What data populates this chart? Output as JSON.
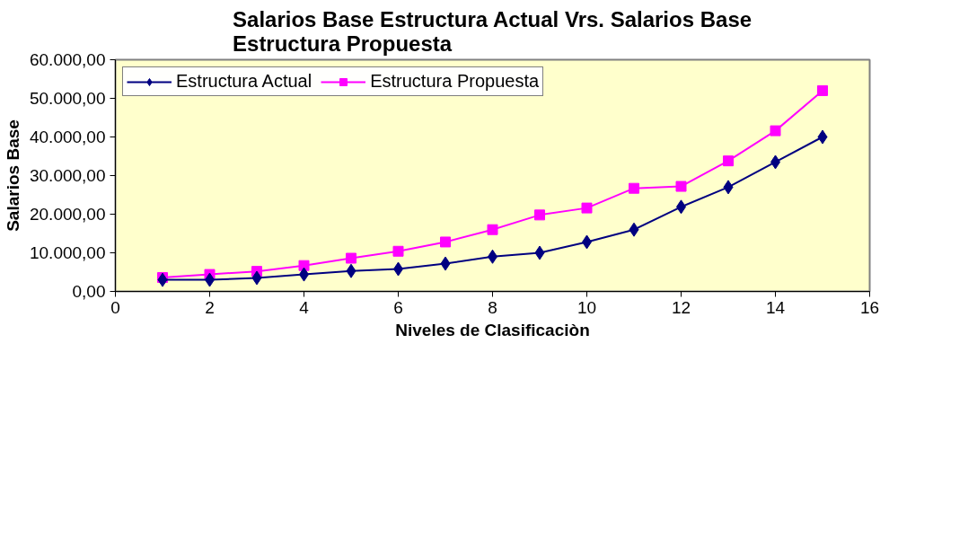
{
  "chart_data": {
    "type": "line",
    "title": "Salarios Base Estructura Actual Vrs. Salarios Base\nEstructura Propuesta",
    "xlabel": "Niveles de Clasificaciòn",
    "ylabel": "Salarios Base",
    "x": [
      1,
      2,
      3,
      4,
      5,
      6,
      7,
      8,
      9,
      10,
      11,
      12,
      13,
      14,
      15
    ],
    "series": [
      {
        "name": "Estructura Actual",
        "color": "#000080",
        "marker": "diamond",
        "values": [
          3000,
          3000,
          3500,
          4400,
          5300,
          5800,
          7200,
          9000,
          10000,
          12800,
          16000,
          21900,
          27000,
          33500,
          40000
        ]
      },
      {
        "name": "Estructura Propuesta",
        "color": "#ff00ff",
        "marker": "square",
        "values": [
          3600,
          4400,
          5200,
          6700,
          8600,
          10400,
          12800,
          16000,
          19800,
          21600,
          26700,
          27200,
          33800,
          41600,
          52000
        ]
      }
    ],
    "xlim": [
      0,
      16
    ],
    "xticks": [
      0,
      2,
      4,
      6,
      8,
      10,
      12,
      14,
      16
    ],
    "ylim": [
      0,
      60000
    ],
    "yticks": [
      {
        "value": 0,
        "label": "0,00"
      },
      {
        "value": 10000,
        "label": "10.000,00"
      },
      {
        "value": 20000,
        "label": "20.000,00"
      },
      {
        "value": 30000,
        "label": "30.000,00"
      },
      {
        "value": 40000,
        "label": "40.000,00"
      },
      {
        "value": 50000,
        "label": "50.000,00"
      },
      {
        "value": 60000,
        "label": "60.000,00"
      }
    ],
    "grid": false,
    "legend": "top left"
  }
}
